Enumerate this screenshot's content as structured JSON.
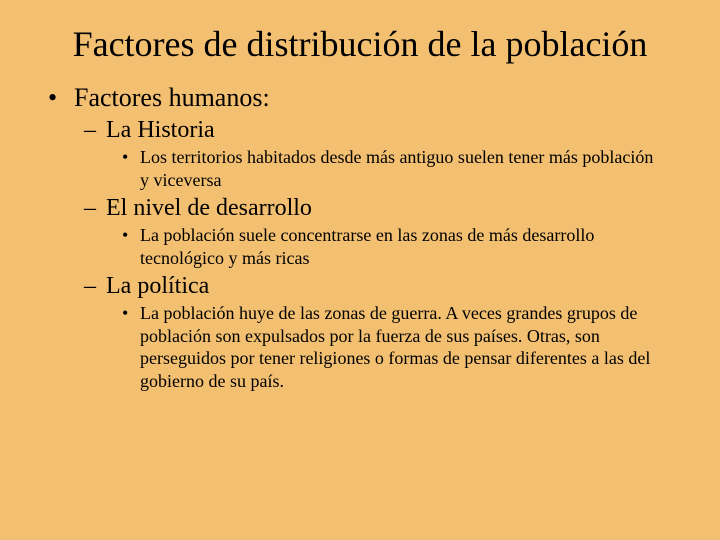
{
  "slide": {
    "background_color": "#f3bf71",
    "text_color": "#000000",
    "font_family": "Times New Roman",
    "title": "Factores de distribución de la población",
    "title_fontsize": 36,
    "level1_fontsize": 26,
    "level2_fontsize": 24,
    "level3_fontsize": 18,
    "bullets": {
      "level1_glyph": "•",
      "level2_glyph": "–",
      "level3_glyph": "•"
    },
    "content": {
      "l1": "Factores humanos:",
      "items": [
        {
          "l2": "La Historia",
          "l3": "Los territorios habitados desde más antiguo suelen tener más población y viceversa"
        },
        {
          "l2": "El nivel de desarrollo",
          "l3": "La población suele concentrarse en las zonas de más desarrollo tecnológico y más ricas"
        },
        {
          "l2": "La política",
          "l3": "La población huye de las zonas de guerra. A veces grandes grupos de población son expulsados por la fuerza de sus países. Otras, son perseguidos por tener religiones o formas de pensar diferentes a las del gobierno de su país."
        }
      ]
    }
  }
}
